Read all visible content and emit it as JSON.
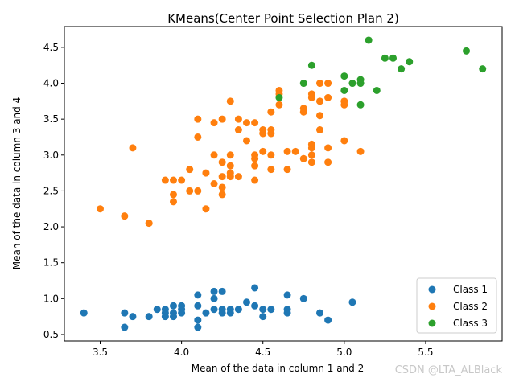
{
  "chart_data": {
    "type": "scatter",
    "title": "KMeans(Center Point Selection Plan 2)",
    "xlabel": "Mean of the data in column 1 and 2",
    "ylabel": "Mean of the data in column 3 and 4",
    "xlim": [
      3.28,
      5.97
    ],
    "ylim": [
      0.41,
      4.79
    ],
    "xticks": [
      3.5,
      4.0,
      4.5,
      5.0,
      5.5
    ],
    "yticks": [
      0.5,
      1.0,
      1.5,
      2.0,
      2.5,
      3.0,
      3.5,
      4.0,
      4.5
    ],
    "xtick_labels": [
      "3.5",
      "4.0",
      "4.5",
      "5.0",
      "5.5"
    ],
    "ytick_labels": [
      "0.5",
      "1.0",
      "1.5",
      "2.0",
      "2.5",
      "3.0",
      "3.5",
      "4.0",
      "4.5"
    ],
    "grid": false,
    "legend_position": "lower-right",
    "series": [
      {
        "name": "Class 1",
        "color": "#1f77b4",
        "points": [
          [
            3.4,
            0.8
          ],
          [
            3.65,
            0.8
          ],
          [
            3.65,
            0.6
          ],
          [
            3.7,
            0.75
          ],
          [
            3.8,
            0.75
          ],
          [
            3.85,
            0.85
          ],
          [
            3.9,
            0.75
          ],
          [
            3.9,
            0.8
          ],
          [
            3.9,
            0.85
          ],
          [
            3.95,
            0.9
          ],
          [
            3.95,
            0.8
          ],
          [
            3.95,
            0.75
          ],
          [
            4.0,
            0.9
          ],
          [
            4.0,
            0.85
          ],
          [
            4.0,
            0.8
          ],
          [
            4.1,
            1.05
          ],
          [
            4.1,
            0.9
          ],
          [
            4.1,
            0.7
          ],
          [
            4.1,
            0.6
          ],
          [
            4.15,
            0.8
          ],
          [
            4.2,
            1.1
          ],
          [
            4.2,
            1.0
          ],
          [
            4.2,
            0.85
          ],
          [
            4.25,
            1.1
          ],
          [
            4.25,
            0.85
          ],
          [
            4.25,
            0.8
          ],
          [
            4.3,
            0.85
          ],
          [
            4.3,
            0.8
          ],
          [
            4.35,
            0.85
          ],
          [
            4.4,
            0.95
          ],
          [
            4.45,
            1.15
          ],
          [
            4.45,
            0.9
          ],
          [
            4.5,
            0.85
          ],
          [
            4.5,
            0.75
          ],
          [
            4.55,
            0.85
          ],
          [
            4.65,
            1.05
          ],
          [
            4.65,
            0.85
          ],
          [
            4.65,
            0.8
          ],
          [
            4.75,
            1.0
          ],
          [
            4.85,
            0.8
          ],
          [
            4.9,
            0.7
          ],
          [
            5.05,
            0.95
          ]
        ]
      },
      {
        "name": "Class 2",
        "color": "#ff7f0e",
        "points": [
          [
            3.5,
            2.25
          ],
          [
            3.65,
            2.15
          ],
          [
            3.7,
            3.1
          ],
          [
            3.8,
            2.05
          ],
          [
            3.9,
            2.65
          ],
          [
            3.95,
            2.65
          ],
          [
            3.95,
            2.45
          ],
          [
            3.95,
            2.35
          ],
          [
            4.0,
            2.65
          ],
          [
            4.05,
            2.8
          ],
          [
            4.05,
            2.5
          ],
          [
            4.1,
            3.5
          ],
          [
            4.1,
            3.25
          ],
          [
            4.1,
            2.5
          ],
          [
            4.15,
            2.75
          ],
          [
            4.15,
            2.25
          ],
          [
            4.2,
            3.45
          ],
          [
            4.2,
            3.0
          ],
          [
            4.2,
            2.6
          ],
          [
            4.25,
            3.5
          ],
          [
            4.25,
            2.9
          ],
          [
            4.25,
            2.7
          ],
          [
            4.25,
            2.55
          ],
          [
            4.25,
            2.45
          ],
          [
            4.3,
            3.75
          ],
          [
            4.3,
            3.0
          ],
          [
            4.3,
            2.85
          ],
          [
            4.3,
            2.75
          ],
          [
            4.3,
            2.7
          ],
          [
            4.35,
            3.5
          ],
          [
            4.35,
            3.35
          ],
          [
            4.35,
            2.7
          ],
          [
            4.4,
            3.45
          ],
          [
            4.4,
            3.2
          ],
          [
            4.45,
            3.45
          ],
          [
            4.45,
            3.0
          ],
          [
            4.45,
            2.95
          ],
          [
            4.45,
            2.85
          ],
          [
            4.45,
            2.65
          ],
          [
            4.5,
            3.35
          ],
          [
            4.5,
            3.3
          ],
          [
            4.5,
            3.05
          ],
          [
            4.55,
            3.6
          ],
          [
            4.55,
            3.35
          ],
          [
            4.55,
            3.3
          ],
          [
            4.55,
            3.0
          ],
          [
            4.55,
            2.8
          ],
          [
            4.6,
            3.9
          ],
          [
            4.6,
            3.85
          ],
          [
            4.6,
            3.7
          ],
          [
            4.65,
            3.05
          ],
          [
            4.65,
            2.8
          ],
          [
            4.7,
            3.05
          ],
          [
            4.75,
            3.65
          ],
          [
            4.75,
            3.6
          ],
          [
            4.75,
            2.95
          ],
          [
            4.8,
            3.85
          ],
          [
            4.8,
            3.8
          ],
          [
            4.8,
            3.15
          ],
          [
            4.8,
            3.1
          ],
          [
            4.8,
            3.0
          ],
          [
            4.8,
            2.9
          ],
          [
            4.85,
            4.0
          ],
          [
            4.85,
            3.75
          ],
          [
            4.85,
            3.55
          ],
          [
            4.85,
            3.35
          ],
          [
            4.9,
            4.0
          ],
          [
            4.9,
            3.8
          ],
          [
            4.9,
            3.1
          ],
          [
            4.9,
            2.9
          ],
          [
            5.0,
            3.75
          ],
          [
            5.0,
            3.7
          ],
          [
            5.0,
            3.2
          ],
          [
            5.1,
            3.05
          ]
        ]
      },
      {
        "name": "Class 3",
        "color": "#2ca02c",
        "points": [
          [
            4.6,
            3.8
          ],
          [
            4.75,
            4.0
          ],
          [
            4.8,
            4.25
          ],
          [
            5.0,
            4.1
          ],
          [
            5.0,
            3.9
          ],
          [
            5.05,
            4.0
          ],
          [
            5.1,
            4.05
          ],
          [
            5.1,
            4.0
          ],
          [
            5.1,
            3.7
          ],
          [
            5.15,
            4.6
          ],
          [
            5.2,
            3.9
          ],
          [
            5.25,
            4.35
          ],
          [
            5.3,
            4.35
          ],
          [
            5.35,
            4.2
          ],
          [
            5.4,
            4.3
          ],
          [
            5.75,
            4.45
          ],
          [
            5.85,
            4.2
          ]
        ]
      }
    ]
  },
  "watermark": "CSDN @LTA_ALBlack"
}
